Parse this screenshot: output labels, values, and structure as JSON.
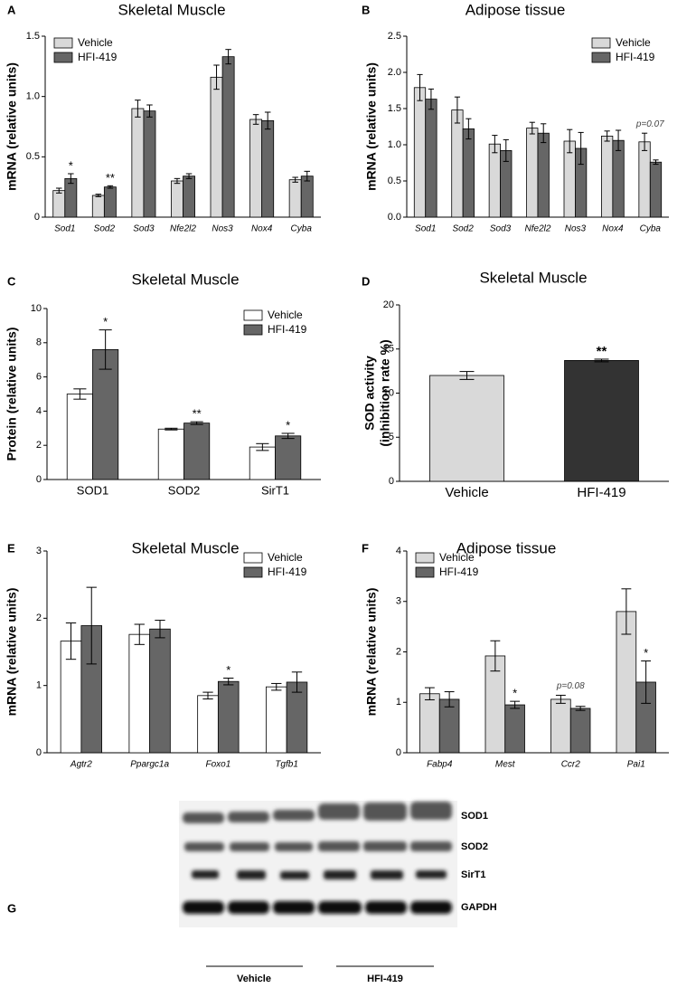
{
  "chart_data": [
    {
      "type": "bar",
      "panel": "A",
      "title": "Skeletal Muscle",
      "y_label": "mRNA (relative units)",
      "italic_categories": true,
      "legend": "upper left",
      "categories": [
        "Sod1",
        "Sod2",
        "Sod3",
        "Nfe2l2",
        "Nos3",
        "Nox4",
        "Cyba"
      ],
      "series": [
        {
          "name": "Vehicle",
          "color": "#d9d9d9",
          "values": [
            0.22,
            0.18,
            0.9,
            0.3,
            1.16,
            0.81,
            0.31
          ],
          "errors": [
            0.02,
            0.01,
            0.07,
            0.02,
            0.1,
            0.04,
            0.02
          ],
          "significance": [
            null,
            null,
            null,
            null,
            null,
            null,
            null
          ]
        },
        {
          "name": "HFI-419",
          "color": "#666666",
          "values": [
            0.32,
            0.25,
            0.88,
            0.34,
            1.33,
            0.8,
            0.34
          ],
          "errors": [
            0.04,
            0.01,
            0.05,
            0.02,
            0.06,
            0.07,
            0.04
          ],
          "significance": [
            "*",
            "**",
            null,
            null,
            null,
            null,
            null
          ]
        }
      ],
      "ylim": [
        0,
        1.5
      ],
      "yticks": [
        0,
        0.5,
        {
          "value": 1,
          "label": "1.0"
        },
        1.5
      ]
    },
    {
      "type": "bar",
      "panel": "B",
      "title": "Adipose tissue",
      "y_label": "mRNA (relative units)",
      "italic_categories": true,
      "legend": "upper right",
      "categories": [
        "Sod1",
        "Sod2",
        "Sod3",
        "Nfe2l2",
        "Nos3",
        "Nox4",
        "Cyba"
      ],
      "series": [
        {
          "name": "Vehicle",
          "color": "#d9d9d9",
          "values": [
            1.79,
            1.48,
            1.01,
            1.23,
            1.05,
            1.12,
            1.04
          ],
          "errors": [
            0.18,
            0.18,
            0.12,
            0.08,
            0.16,
            0.07,
            0.12
          ],
          "significance": [
            null,
            null,
            null,
            null,
            null,
            null,
            "p=0.07"
          ]
        },
        {
          "name": "HFI-419",
          "color": "#666666",
          "values": [
            1.63,
            1.22,
            0.92,
            1.16,
            0.95,
            1.06,
            0.76
          ],
          "errors": [
            0.14,
            0.14,
            0.15,
            0.13,
            0.22,
            0.14,
            0.03
          ],
          "significance": [
            null,
            null,
            null,
            null,
            null,
            null,
            null
          ]
        }
      ],
      "ylim": [
        0,
        2.5
      ],
      "yticks": [
        {
          "value": 0,
          "label": "0.0"
        },
        0.5,
        {
          "value": 1,
          "label": "1.0"
        },
        1.5,
        {
          "value": 2,
          "label": "2.0"
        },
        2.5
      ]
    },
    {
      "type": "bar",
      "panel": "C",
      "title": "Skeletal Muscle",
      "y_label": "Protein (relative units)",
      "italic_categories": false,
      "legend": "upper right",
      "categories": [
        "SOD1",
        "SOD2",
        "SirT1"
      ],
      "series": [
        {
          "name": "Vehicle",
          "color": "#ffffff",
          "values": [
            5.0,
            2.95,
            1.9
          ],
          "errors": [
            0.3,
            0.05,
            0.2
          ],
          "significance": [
            null,
            null,
            null
          ]
        },
        {
          "name": "HFI-419",
          "color": "#666666",
          "values": [
            7.6,
            3.3,
            2.55
          ],
          "errors": [
            1.15,
            0.08,
            0.15
          ],
          "significance": [
            "*",
            "**",
            "*"
          ]
        }
      ],
      "ylim": [
        0,
        10
      ],
      "yticks": [
        0,
        2,
        4,
        6,
        8,
        10
      ]
    },
    {
      "type": "bar",
      "panel": "D",
      "title": "Skeletal Muscle",
      "y_label": [
        "SOD activity",
        "(inhibition rate %)"
      ],
      "italic_categories": false,
      "categories": [
        "Vehicle",
        "HFI-419"
      ],
      "series": [
        {
          "colors": [
            "#d9d9d9",
            "#333333"
          ],
          "values": [
            12.0,
            13.7
          ],
          "errors": [
            0.45,
            0.15
          ],
          "significance": [
            null,
            "**"
          ]
        }
      ],
      "ylim": [
        0,
        20
      ],
      "yticks": [
        0,
        5,
        10,
        15,
        20
      ]
    },
    {
      "type": "bar",
      "panel": "E",
      "title": "Skeletal Muscle",
      "y_label": "mRNA (relative units)",
      "italic_categories": true,
      "legend": "upper right",
      "categories": [
        "Agtr2",
        "Ppargc1a",
        "Foxo1",
        "Tgfb1"
      ],
      "series": [
        {
          "name": "Vehicle",
          "color": "#ffffff",
          "values": [
            1.66,
            1.76,
            0.85,
            0.98
          ],
          "errors": [
            0.27,
            0.15,
            0.05,
            0.05
          ],
          "significance": [
            null,
            null,
            null,
            null
          ]
        },
        {
          "name": "HFI-419",
          "color": "#666666",
          "values": [
            1.89,
            1.84,
            1.06,
            1.05
          ],
          "errors": [
            0.57,
            0.13,
            0.05,
            0.15
          ],
          "significance": [
            null,
            null,
            "*",
            null
          ]
        }
      ],
      "ylim": [
        0,
        3
      ],
      "yticks": [
        0,
        1,
        2,
        3
      ]
    },
    {
      "type": "bar",
      "panel": "F",
      "title": "Adipose tissue",
      "y_label": "mRNA (relative units)",
      "italic_categories": true,
      "legend": "upper left",
      "categories": [
        "Fabp4",
        "Mest",
        "Ccr2",
        "Pai1"
      ],
      "series": [
        {
          "name": "Vehicle",
          "color": "#d9d9d9",
          "values": [
            1.17,
            1.92,
            1.06,
            2.8
          ],
          "errors": [
            0.12,
            0.3,
            0.08,
            0.45
          ],
          "significance": [
            null,
            null,
            "p=0.08",
            null
          ]
        },
        {
          "name": "HFI-419",
          "color": "#666666",
          "values": [
            1.06,
            0.95,
            0.88,
            1.4
          ],
          "errors": [
            0.15,
            0.07,
            0.04,
            0.42
          ],
          "significance": [
            null,
            "*",
            null,
            "*"
          ]
        }
      ],
      "ylim": [
        0,
        4
      ],
      "yticks": [
        0,
        1,
        2,
        3,
        4
      ]
    }
  ],
  "blot": {
    "panel": "G",
    "bands": [
      "SOD1",
      "SOD2",
      "SirT1",
      "GAPDH"
    ],
    "groups": [
      "Vehicle",
      "HFI-419"
    ]
  }
}
